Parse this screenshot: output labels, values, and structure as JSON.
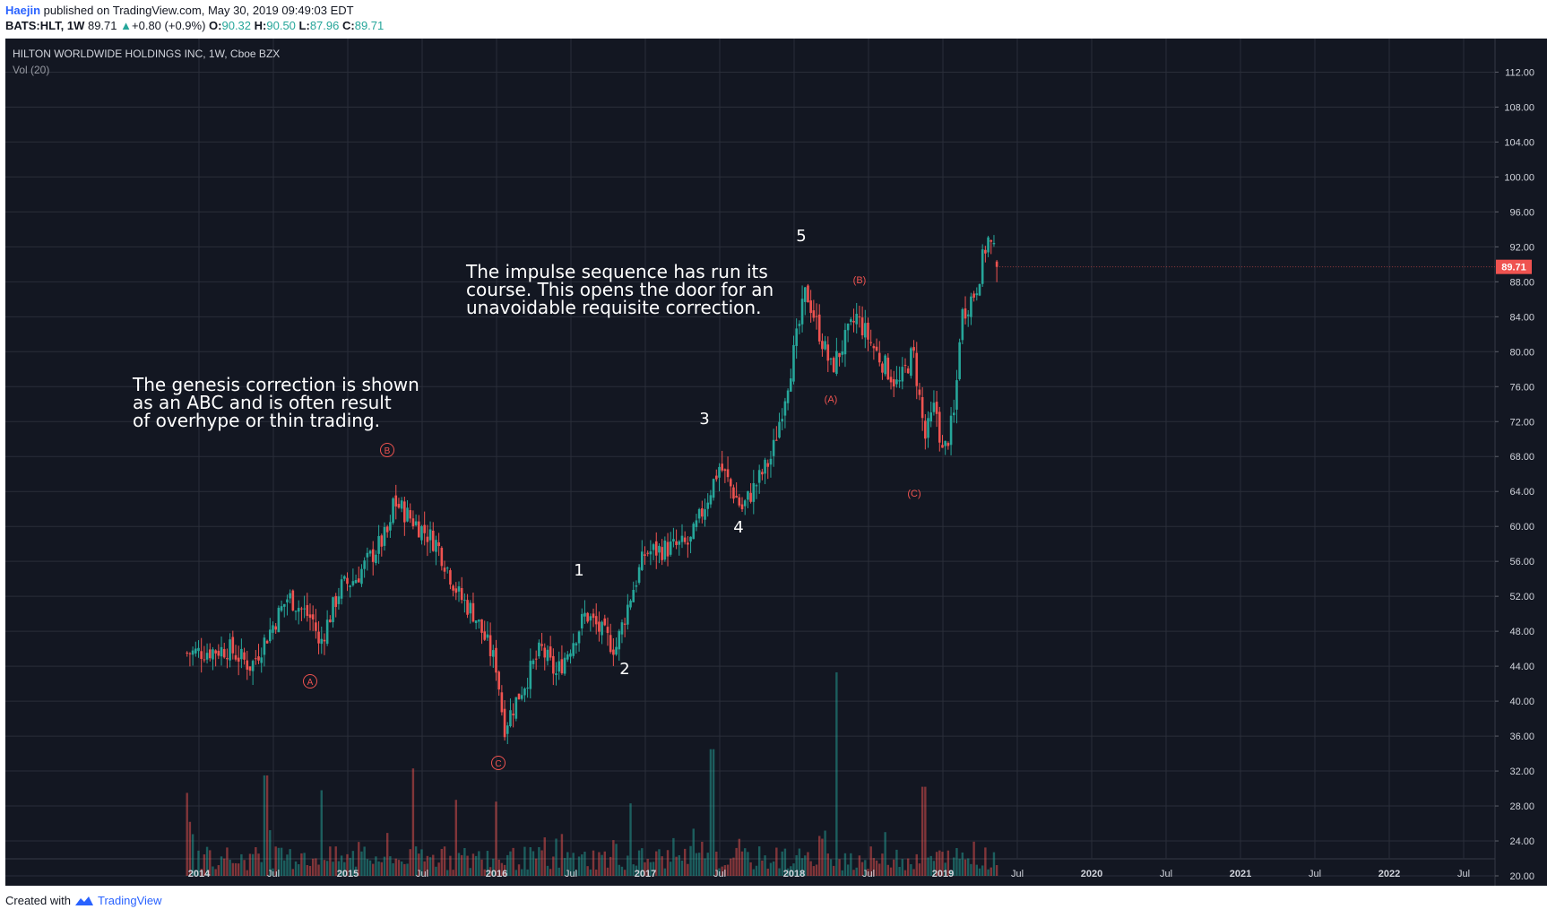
{
  "header": {
    "author": "Haejin",
    "published_text": "published on TradingView.com, May 30, 2019 09:49:03 EDT",
    "symbol": "BATS:HLT, 1W",
    "last": "89.71",
    "change_arrow": "▲",
    "change": "+0.80 (+0.9%)",
    "o_label": "O:",
    "o_value": "90.32",
    "h_label": "H:",
    "h_value": "90.50",
    "l_label": "L:",
    "l_value": "87.96",
    "c_label": "C:",
    "c_value": "89.71"
  },
  "chart_title": "HILTON WORLDWIDE HOLDINGS INC, 1W, Cboe BZX",
  "volume_label": "Vol (20)",
  "footer": {
    "created_with": "Created with",
    "brand": "TradingView"
  },
  "colors": {
    "background": "#131722",
    "grid": "#2a2e39",
    "up": "#26a69a",
    "down": "#ef5350",
    "price_tag": "#ef5350",
    "text": "#d1d4dc"
  },
  "annotations": {
    "text_block_1": [
      "The genesis correction is shown",
      "as an ABC and is often result",
      "of overhype or thin trading."
    ],
    "text_block_2": [
      "The impulse sequence has run its",
      "course. This opens the door for an",
      "unavoidable requisite correction."
    ],
    "wave_labels": [
      {
        "label": "A",
        "style": "circle"
      },
      {
        "label": "B",
        "style": "circle"
      },
      {
        "label": "C",
        "style": "circle"
      },
      {
        "label": "1",
        "style": "plain"
      },
      {
        "label": "2",
        "style": "plain"
      },
      {
        "label": "3",
        "style": "plain"
      },
      {
        "label": "4",
        "style": "plain"
      },
      {
        "label": "5",
        "style": "plain"
      },
      {
        "label": "(A)",
        "style": "paren"
      },
      {
        "label": "(B)",
        "style": "paren"
      },
      {
        "label": "(C)",
        "style": "paren"
      }
    ]
  },
  "chart_data": {
    "type": "candlestick",
    "symbol": "HLT",
    "interval": "1W",
    "x_axis": {
      "ticks": [
        "2014",
        "Jul",
        "2015",
        "Jul",
        "2016",
        "Jul",
        "2017",
        "Jul",
        "2018",
        "Jul",
        "2019",
        "Jul",
        "2020",
        "Jul",
        "2021",
        "Jul",
        "2022",
        "Jul"
      ],
      "tick_times": [
        2014.0,
        2014.5,
        2015.0,
        2015.5,
        2016.0,
        2016.5,
        2017.0,
        2017.5,
        2018.0,
        2018.5,
        2019.0,
        2019.5,
        2020.0,
        2020.5,
        2021.0,
        2021.5,
        2022.0,
        2022.5
      ],
      "range": [
        2013.0,
        2023.0
      ]
    },
    "y_axis": {
      "ticks": [
        "112.00",
        "108.00",
        "104.00",
        "100.00",
        "96.00",
        "92.00",
        "88.00",
        "84.00",
        "80.00",
        "76.00",
        "72.00",
        "68.00",
        "64.00",
        "60.00",
        "56.00",
        "52.00",
        "48.00",
        "44.00",
        "40.00",
        "36.00",
        "32.00",
        "28.00",
        "24.00",
        "20.00"
      ],
      "range": [
        20,
        114
      ],
      "last_price": 89.71
    },
    "price_keypoints": [
      {
        "t": 2013.92,
        "p": 45.5
      },
      {
        "t": 2014.2,
        "p": 46.0
      },
      {
        "t": 2014.35,
        "p": 44.0
      },
      {
        "t": 2014.6,
        "p": 52.0
      },
      {
        "t": 2014.78,
        "p": 49.0
      },
      {
        "t": 2014.8,
        "p": 46.0
      },
      {
        "t": 2014.95,
        "p": 53.0
      },
      {
        "t": 2015.05,
        "p": 54.0
      },
      {
        "t": 2015.3,
        "p": 60.0
      },
      {
        "t": 2015.3,
        "p": 63.0
      },
      {
        "t": 2015.6,
        "p": 58.0
      },
      {
        "t": 2015.75,
        "p": 52.0
      },
      {
        "t": 2015.85,
        "p": 50.0
      },
      {
        "t": 2016.0,
        "p": 44.0
      },
      {
        "t": 2016.05,
        "p": 37.0
      },
      {
        "t": 2016.13,
        "p": 40.0
      },
      {
        "t": 2016.3,
        "p": 46.0
      },
      {
        "t": 2016.4,
        "p": 43.0
      },
      {
        "t": 2016.6,
        "p": 50.0
      },
      {
        "t": 2016.8,
        "p": 46.0
      },
      {
        "t": 2016.9,
        "p": 52.0
      },
      {
        "t": 2017.0,
        "p": 57.0
      },
      {
        "t": 2017.3,
        "p": 58.0
      },
      {
        "t": 2017.5,
        "p": 67.0
      },
      {
        "t": 2017.65,
        "p": 62.0
      },
      {
        "t": 2017.85,
        "p": 68.0
      },
      {
        "t": 2018.0,
        "p": 80.0
      },
      {
        "t": 2018.08,
        "p": 87.0
      },
      {
        "t": 2018.25,
        "p": 78.0
      },
      {
        "t": 2018.42,
        "p": 84.0
      },
      {
        "t": 2018.55,
        "p": 80.0
      },
      {
        "t": 2018.7,
        "p": 76.0
      },
      {
        "t": 2018.8,
        "p": 80.0
      },
      {
        "t": 2018.88,
        "p": 70.0
      },
      {
        "t": 2018.95,
        "p": 74.0
      },
      {
        "t": 2019.0,
        "p": 68.0
      },
      {
        "t": 2019.08,
        "p": 73.0
      },
      {
        "t": 2019.12,
        "p": 84.0
      },
      {
        "t": 2019.22,
        "p": 87.0
      },
      {
        "t": 2019.3,
        "p": 93.0
      },
      {
        "t": 2019.38,
        "p": 89.71
      }
    ],
    "volume_spikes": [
      {
        "t": 2013.92,
        "v": 29.5
      },
      {
        "t": 2014.45,
        "v": 31.5
      },
      {
        "t": 2014.82,
        "v": 29.8
      },
      {
        "t": 2015.44,
        "v": 32.3
      },
      {
        "t": 2015.72,
        "v": 28.7
      },
      {
        "t": 2016.0,
        "v": 28.5
      },
      {
        "t": 2016.9,
        "v": 28.3
      },
      {
        "t": 2017.45,
        "v": 34.5
      },
      {
        "t": 2018.28,
        "v": 43.3
      },
      {
        "t": 2018.87,
        "v": 30.2
      }
    ],
    "volume_scale_note": "volume drawn against price axis units"
  }
}
